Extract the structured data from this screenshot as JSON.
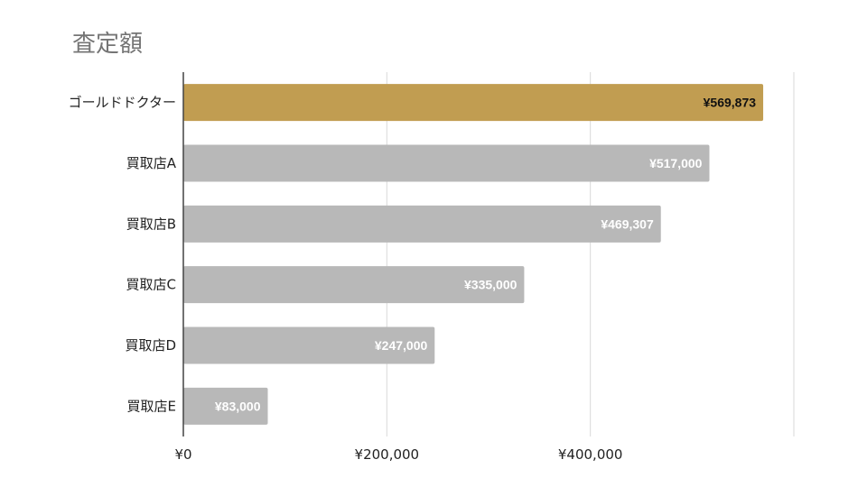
{
  "chart_data": {
    "type": "bar",
    "orientation": "horizontal",
    "title": "査定額",
    "categories": [
      "ゴールドドクター",
      "買取店A",
      "買取店B",
      "買取店C",
      "買取店D",
      "買取店E"
    ],
    "values": [
      569873,
      517000,
      469307,
      335000,
      247000,
      83000
    ],
    "value_labels": [
      "¥569,873",
      "¥517,000",
      "¥469,307",
      "¥335,000",
      "¥247,000",
      "¥83,000"
    ],
    "xlim": [
      0,
      600000
    ],
    "x_ticks": [
      0,
      200000,
      400000
    ],
    "x_tick_labels": [
      "¥0",
      "¥200,000",
      "¥400,000"
    ],
    "grid": true,
    "colors": {
      "highlight": "#c19d51",
      "default": "#b8b8b8",
      "grid": "#d9d9d9",
      "axis": "#444444",
      "label_on_highlight": "#111111",
      "label_on_default": "#ffffff"
    }
  }
}
